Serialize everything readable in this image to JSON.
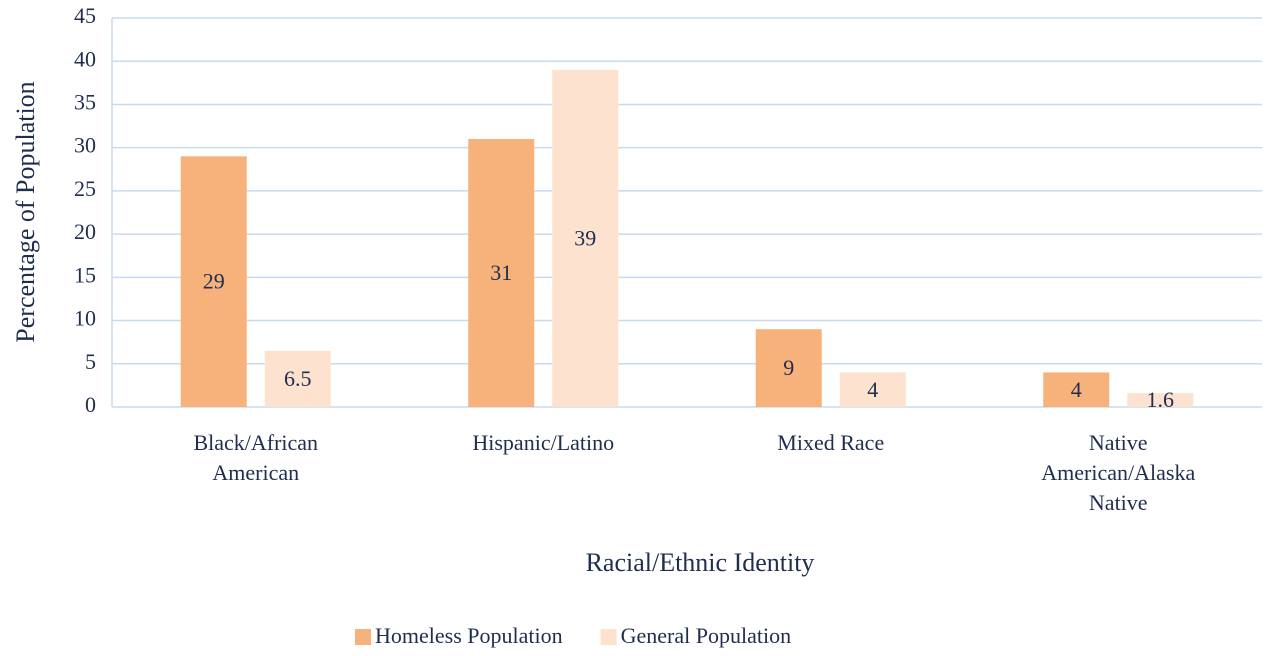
{
  "chart_data": {
    "type": "bar",
    "x_label": "Racial/Ethnic Identity",
    "y_label": "Percentage of Population",
    "categories": [
      "Black/African American",
      "Hispanic/Latino",
      "Mixed Race",
      "Native American/Alaska Native"
    ],
    "series": [
      {
        "name": "Homeless Population",
        "color": "#f6b27a",
        "values": [
          29,
          31,
          9,
          4
        ]
      },
      {
        "name": "General Population",
        "color": "#fde3cf",
        "values": [
          6.5,
          39,
          4,
          1.6
        ]
      }
    ],
    "ylim": [
      0,
      45
    ],
    "yticks": [
      0,
      5,
      10,
      15,
      20,
      25,
      30,
      35,
      40,
      45
    ],
    "grid": true,
    "legend": "bottom"
  }
}
